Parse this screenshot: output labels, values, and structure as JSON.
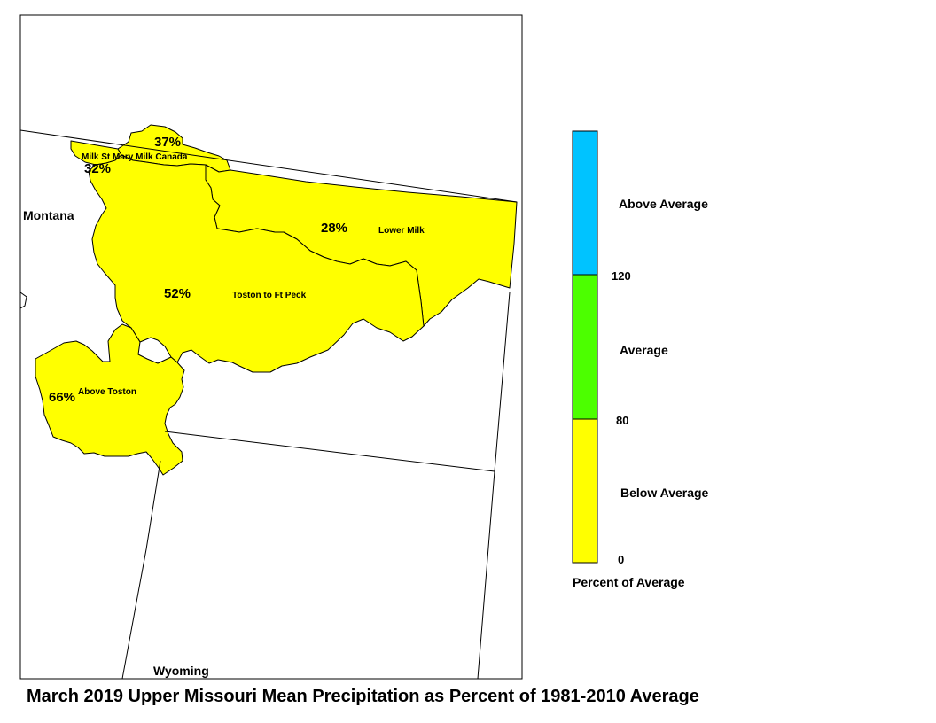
{
  "title": "March 2019 Upper Missouri Mean Precipitation as Percent of 1981-2010 Average",
  "states": [
    "Montana",
    "Wyoming"
  ],
  "colors": {
    "below": "#ffff00",
    "average": "#4cff00",
    "above": "#00c3ff",
    "outline": "#000000"
  },
  "basins": [
    {
      "name": "Milk Canada",
      "percent": "37%"
    },
    {
      "name": "St Mary",
      "percent": "32%"
    },
    {
      "name": "Lower Milk",
      "percent": "28%"
    },
    {
      "name": "Toston to Ft Peck",
      "percent": "52%"
    },
    {
      "name": "Above Toston",
      "percent": "66%"
    }
  ],
  "milk_label": "Milk St Mary Milk Canada",
  "legend": {
    "categories": [
      {
        "label": "Above Average",
        "color": "#00c3ff"
      },
      {
        "label": "Average",
        "color": "#4cff00"
      },
      {
        "label": "Below Average",
        "color": "#ffff00"
      }
    ],
    "breaks": [
      "120",
      "80",
      "0"
    ],
    "caption": "Percent of Average"
  }
}
